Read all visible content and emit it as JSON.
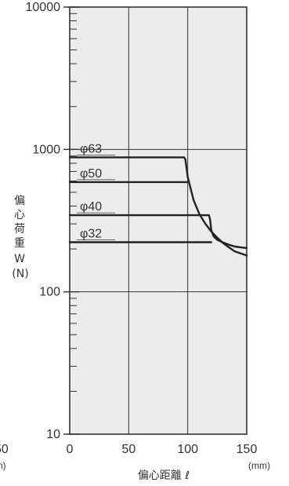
{
  "chart_data": {
    "type": "line",
    "title": "",
    "xlabel": "偏心距離 ℓ",
    "xunit": "(mm)",
    "ylabel_lines": [
      "偏",
      "心",
      "荷",
      "重",
      "W",
      "(N)"
    ],
    "xlim": [
      0,
      150
    ],
    "ylim": [
      10,
      10000
    ],
    "yscale": "log",
    "grid": true,
    "x_ticks": [
      0,
      50,
      100,
      150
    ],
    "y_ticks": [
      10,
      100,
      1000,
      10000
    ],
    "y_tick_labels": [
      "10",
      "100",
      "1000",
      "10000"
    ],
    "x_tick_labels": [
      "0",
      "50",
      "100",
      "150"
    ],
    "left_cut_labels": [
      "50",
      "n)"
    ],
    "series": [
      {
        "name": "φ63",
        "x": [
          0,
          97,
          98,
          100,
          105,
          110,
          115,
          120,
          125,
          130,
          135,
          140,
          150
        ],
        "y": [
          880,
          880,
          850,
          640,
          440,
          350,
          300,
          265,
          240,
          220,
          205,
          192,
          180
        ]
      },
      {
        "name": "φ50",
        "x": [
          0,
          98,
          100
        ],
        "y": [
          590,
          590,
          590
        ]
      },
      {
        "name": "φ40",
        "x": [
          0,
          118,
          119,
          120,
          122,
          125,
          130,
          135,
          140,
          145,
          150
        ],
        "y": [
          345,
          345,
          320,
          270,
          245,
          232,
          222,
          214,
          208,
          205,
          203
        ]
      },
      {
        "name": "φ32",
        "x": [
          0,
          120
        ],
        "y": [
          223,
          223
        ]
      }
    ]
  }
}
